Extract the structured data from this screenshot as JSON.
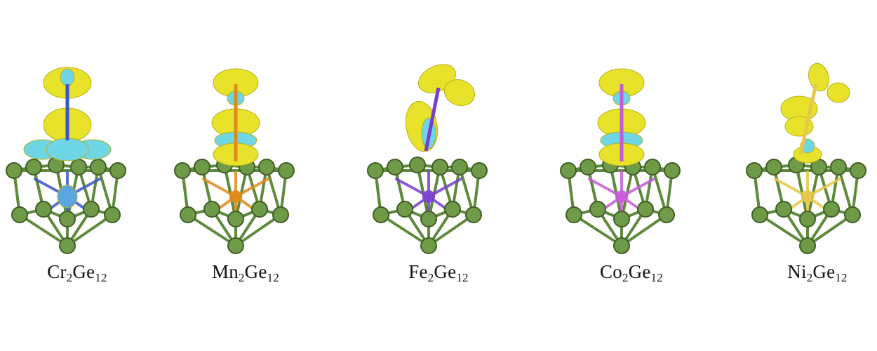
{
  "figure": {
    "panels": [
      {
        "id": "cr",
        "element": "Cr",
        "n_metal": "2",
        "host": "Ge",
        "n_host": "12",
        "dopant_color": "#3a57c9",
        "lobe_style": "collinear-ring"
      },
      {
        "id": "mn",
        "element": "Mn",
        "n_metal": "2",
        "host": "Ge",
        "n_host": "12",
        "dopant_color": "#e08a1c",
        "lobe_style": "collinear"
      },
      {
        "id": "fe",
        "element": "Fe",
        "n_metal": "2",
        "host": "Ge",
        "n_host": "12",
        "dopant_color": "#7b3fd0",
        "lobe_style": "tilted"
      },
      {
        "id": "co",
        "element": "Co",
        "n_metal": "2",
        "host": "Ge",
        "n_host": "12",
        "dopant_color": "#c65bd9",
        "lobe_style": "collinear"
      },
      {
        "id": "ni",
        "element": "Ni",
        "n_metal": "2",
        "host": "Ge",
        "n_host": "12",
        "dopant_color": "#e6c84a",
        "lobe_style": "bent"
      }
    ],
    "colors": {
      "ge_atom": "#6f9a48",
      "ge_atom_dark": "#3f5f25",
      "ge_bond": "#5f8a3e",
      "density_positive": "#e8e22a",
      "density_negative": "#6fd6e6"
    }
  }
}
